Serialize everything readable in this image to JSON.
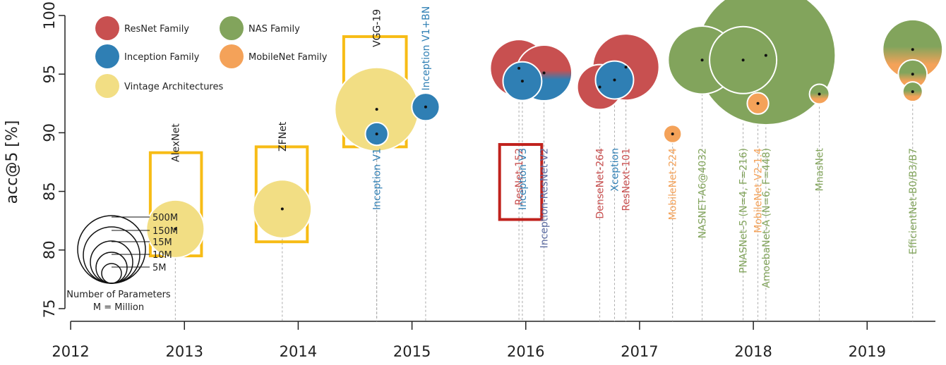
{
  "chart_data": {
    "type": "scatter",
    "ylabel": "acc@5 [%]",
    "ylim": [
      75,
      100
    ],
    "yticks": [
      75,
      80,
      85,
      90,
      95,
      100
    ],
    "xlim": [
      2011.95,
      2019.6
    ],
    "xticks": [
      2012,
      2013,
      2014,
      2015,
      2016,
      2017,
      2018,
      2019
    ],
    "colors": {
      "ResNet Family": "#c85050",
      "Inception Family": "#2f7fb4",
      "NAS Family": "#82a45c",
      "MobileNet Family": "#f4a259",
      "Vintage Architectures": "#f2de84",
      "highlight_box": "#f7bc16",
      "red_box": "#c0221d"
    },
    "legend": [
      {
        "label": "ResNet Family",
        "family": "ResNet Family"
      },
      {
        "label": "NAS Family",
        "family": "NAS Family"
      },
      {
        "label": "Inception Family",
        "family": "Inception Family"
      },
      {
        "label": "MobileNet Family",
        "family": "MobileNet Family"
      },
      {
        "label": "Vintage Architectures",
        "family": "Vintage Architectures"
      }
    ],
    "size_legend": {
      "labels": [
        "500M",
        "150M",
        "15M",
        "10M",
        "5M"
      ],
      "caption_line1": "Number of Parameters",
      "caption_line2": "M = Million"
    },
    "models": [
      {
        "name": "AlexNet",
        "x": 2012.92,
        "y": 81.8,
        "params": 61,
        "family": "Vintage Architectures",
        "label_pos": "above",
        "label_y": 87.5
      },
      {
        "name": "ZFNet",
        "x": 2013.86,
        "y": 83.5,
        "params": 62,
        "family": "Vintage Architectures",
        "label_pos": "above",
        "label_y": 88.4
      },
      {
        "name": "VGG-19",
        "x": 2014.69,
        "y": 92.0,
        "params": 144,
        "family": "Vintage Architectures",
        "label_pos": "above",
        "label_y": 97.3
      },
      {
        "name": "Inception V1",
        "x": 2014.69,
        "y": 89.9,
        "params": 7,
        "family": "Inception Family",
        "label_pos": "below",
        "label_y": 88.7
      },
      {
        "name": "Inception V1+BN",
        "x": 2015.12,
        "y": 92.2,
        "params": 11,
        "family": "Inception Family",
        "label_pos": "above",
        "label_y": 93.6
      },
      {
        "name": "ResNet-152",
        "x": 2015.94,
        "y": 95.5,
        "params": 60,
        "family": "ResNet Family",
        "label_pos": "below",
        "label_y": 88.7
      },
      {
        "name": "Inception V3",
        "x": 2015.97,
        "y": 94.4,
        "params": 24,
        "family": "Inception Family",
        "label_pos": "below",
        "label_y": 88.7
      },
      {
        "name": "Inception-ResNet-V2",
        "x": 2016.16,
        "y": 95.1,
        "params": 56,
        "family": "Inception-ResNet",
        "label_pos": "below",
        "label_y": 88.7
      },
      {
        "name": "DenseNet-264",
        "x": 2016.65,
        "y": 93.9,
        "params": 34,
        "family": "ResNet Family",
        "label_pos": "below",
        "label_y": 88.7
      },
      {
        "name": "Xception",
        "x": 2016.78,
        "y": 94.5,
        "params": 23,
        "family": "Inception Family",
        "label_pos": "below",
        "label_y": 88.7
      },
      {
        "name": "ResNext-101",
        "x": 2016.88,
        "y": 95.6,
        "params": 84,
        "family": "ResNet Family",
        "label_pos": "below",
        "label_y": 88.7
      },
      {
        "name": "MobileNet-224",
        "x": 2017.29,
        "y": 89.9,
        "params": 4,
        "family": "MobileNet Family",
        "label_pos": "below",
        "label_y": 88.7
      },
      {
        "name": "NASNET-A6@4032",
        "x": 2017.55,
        "y": 96.2,
        "params": 89,
        "family": "NAS Family",
        "label_pos": "below",
        "label_y": 88.7
      },
      {
        "name": "PNASNet-5 (N=4, F=216)",
        "x": 2017.91,
        "y": 96.2,
        "params": 86,
        "family": "NAS Family",
        "label_pos": "below",
        "label_y": 88.7
      },
      {
        "name": "MobileNet V2-1.4",
        "x": 2018.04,
        "y": 92.5,
        "params": 6,
        "family": "MobileNet Family",
        "label_pos": "below",
        "label_y": 88.7
      },
      {
        "name": "AmoebaNet-A (N=6, F=448)",
        "x": 2018.11,
        "y": 96.6,
        "params": 469,
        "family": "NAS Family",
        "label_pos": "below",
        "label_y": 88.7
      },
      {
        "name": "MnasNet",
        "x": 2018.58,
        "y": 93.3,
        "params": 5,
        "family": "NAS-Mobile",
        "label_pos": "below",
        "label_y": 88.7
      },
      {
        "name": "EfficientNet-B0/B3/B7",
        "x": 2019.4,
        "y": 97.1,
        "params": 66,
        "family": "NAS-Mobile",
        "label_pos": "below",
        "label_y": 88.7,
        "extra_points": [
          {
            "y": 95.0,
            "params": 12
          },
          {
            "y": 93.5,
            "params": 5
          }
        ]
      }
    ],
    "boxes": [
      {
        "target": "AlexNet",
        "color": "highlight_box"
      },
      {
        "target": "ZFNet",
        "color": "highlight_box"
      },
      {
        "target": "VGG-19",
        "color": "highlight_box"
      },
      {
        "target": "ResNet-152",
        "color": "red_box"
      }
    ]
  }
}
